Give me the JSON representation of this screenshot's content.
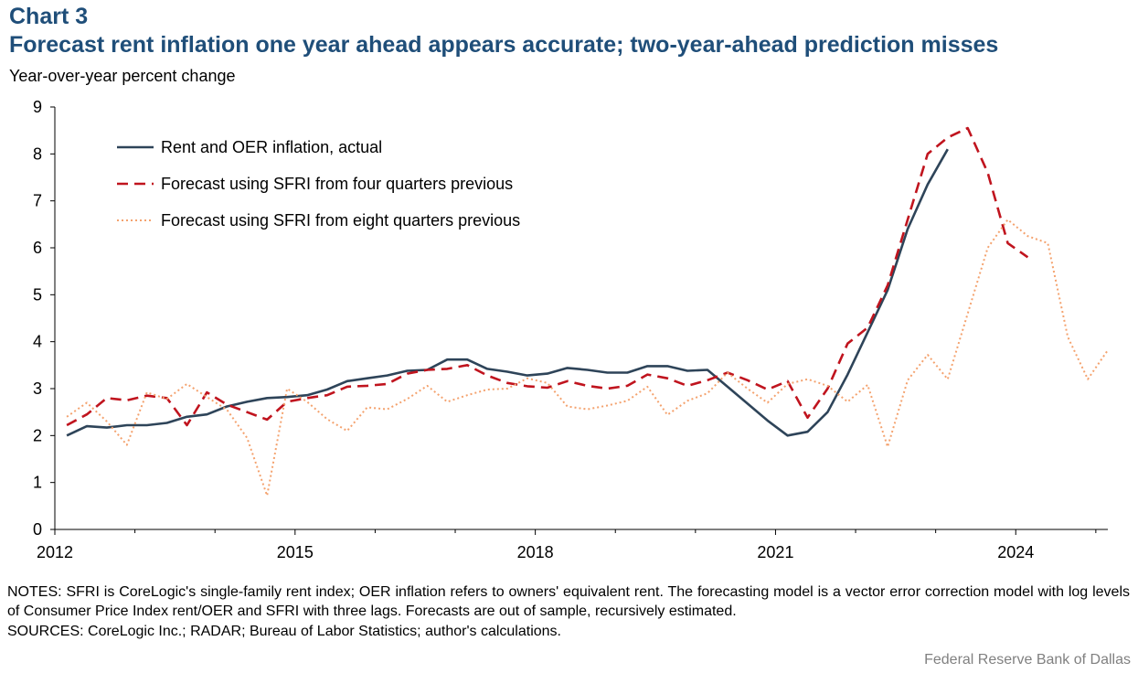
{
  "header": {
    "chart_number": "Chart 3",
    "title": "Forecast rent inflation one year ahead appears accurate; two-year-ahead prediction misses",
    "ylabel": "Year-over-year percent change"
  },
  "footer": {
    "notes": "NOTES: SFRI is CoreLogic's single-family rent index; OER inflation refers to owners' equivalent rent. The forecasting model is a vector error correction model with log levels of Consumer Price Index rent/OER and SFRI with three lags. Forecasts are out of sample, recursively estimated.",
    "sources": "SOURCES: CoreLogic Inc.; RADAR;  Bureau of Labor Statistics; author's calculations.",
    "credit": "Federal Reserve  Bank of Dallas"
  },
  "colors": {
    "actual": "#2e4459",
    "forecast4q": "#c0141e",
    "forecast8q": "#f4a26e",
    "title": "#1f4e79"
  },
  "chart_data": {
    "type": "line",
    "title": "Forecast rent inflation one year ahead appears accurate; two-year-ahead prediction misses",
    "ylabel": "Year-over-year percent change",
    "xlabel": "",
    "ylim": [
      0,
      9
    ],
    "xlim": [
      2012,
      2025.15
    ],
    "x_tick_labels": [
      "2012",
      "2015",
      "2018",
      "2021",
      "2024"
    ],
    "y_tick_labels": [
      "0",
      "1",
      "2",
      "3",
      "4",
      "5",
      "6",
      "7",
      "8",
      "9"
    ],
    "legend_position": "top-left",
    "grid": false,
    "series": [
      {
        "name": "Rent and OER inflation, actual",
        "style": "solid",
        "x": [
          2012.15,
          2012.4,
          2012.65,
          2012.9,
          2013.15,
          2013.4,
          2013.65,
          2013.9,
          2014.15,
          2014.4,
          2014.65,
          2014.9,
          2015.15,
          2015.4,
          2015.65,
          2015.9,
          2016.15,
          2016.4,
          2016.65,
          2016.9,
          2017.15,
          2017.4,
          2017.65,
          2017.9,
          2018.15,
          2018.4,
          2018.65,
          2018.9,
          2019.15,
          2019.4,
          2019.65,
          2019.9,
          2020.15,
          2020.4,
          2020.65,
          2020.9,
          2021.15,
          2021.4,
          2021.65,
          2021.9,
          2022.15,
          2022.4,
          2022.65,
          2022.9,
          2023.15
        ],
        "y": [
          2.0,
          2.2,
          2.17,
          2.22,
          2.22,
          2.27,
          2.4,
          2.45,
          2.62,
          2.72,
          2.8,
          2.82,
          2.86,
          2.98,
          3.16,
          3.22,
          3.28,
          3.38,
          3.4,
          3.62,
          3.62,
          3.42,
          3.36,
          3.28,
          3.32,
          3.44,
          3.4,
          3.34,
          3.34,
          3.48,
          3.48,
          3.38,
          3.4,
          3.04,
          2.68,
          2.32,
          2.0,
          2.08,
          2.5,
          3.3,
          4.2,
          5.1,
          6.4,
          7.35,
          8.1
        ]
      },
      {
        "name": "Forecast using SFRI from four quarters previous",
        "style": "dashed",
        "x": [
          2012.15,
          2012.4,
          2012.65,
          2012.9,
          2013.15,
          2013.4,
          2013.65,
          2013.9,
          2014.15,
          2014.4,
          2014.65,
          2014.9,
          2015.15,
          2015.4,
          2015.65,
          2015.9,
          2016.15,
          2016.4,
          2016.65,
          2016.9,
          2017.15,
          2017.4,
          2017.65,
          2017.9,
          2018.15,
          2018.4,
          2018.65,
          2018.9,
          2019.15,
          2019.4,
          2019.65,
          2019.9,
          2020.15,
          2020.4,
          2020.65,
          2020.9,
          2021.15,
          2021.4,
          2021.65,
          2021.9,
          2022.15,
          2022.4,
          2022.65,
          2022.9,
          2023.15,
          2023.4,
          2023.65,
          2023.9,
          2024.15
        ],
        "y": [
          2.22,
          2.45,
          2.8,
          2.75,
          2.85,
          2.8,
          2.22,
          2.92,
          2.66,
          2.5,
          2.34,
          2.72,
          2.8,
          2.86,
          3.04,
          3.06,
          3.1,
          3.32,
          3.4,
          3.42,
          3.5,
          3.28,
          3.12,
          3.05,
          3.02,
          3.16,
          3.06,
          3.0,
          3.06,
          3.3,
          3.22,
          3.06,
          3.18,
          3.34,
          3.18,
          2.98,
          3.16,
          2.38,
          3.0,
          3.96,
          4.3,
          5.2,
          6.6,
          8.0,
          8.35,
          8.55,
          7.6,
          6.1,
          5.8
        ]
      },
      {
        "name": "Forecast using SFRI from eight quarters previous",
        "style": "dotted",
        "x": [
          2012.15,
          2012.4,
          2012.65,
          2012.9,
          2013.15,
          2013.4,
          2013.65,
          2013.9,
          2014.15,
          2014.4,
          2014.65,
          2014.9,
          2015.15,
          2015.4,
          2015.65,
          2015.9,
          2016.15,
          2016.4,
          2016.65,
          2016.9,
          2017.15,
          2017.4,
          2017.65,
          2017.9,
          2018.15,
          2018.4,
          2018.65,
          2018.9,
          2019.15,
          2019.4,
          2019.65,
          2019.9,
          2020.15,
          2020.4,
          2020.65,
          2020.9,
          2021.15,
          2021.4,
          2021.65,
          2021.9,
          2022.15,
          2022.4,
          2022.65,
          2022.9,
          2023.15,
          2023.4,
          2023.65,
          2023.9,
          2024.15,
          2024.4,
          2024.65,
          2024.9,
          2025.15
        ],
        "y": [
          2.4,
          2.7,
          2.3,
          1.8,
          2.92,
          2.78,
          3.1,
          2.82,
          2.55,
          1.95,
          0.72,
          3.0,
          2.72,
          2.35,
          2.1,
          2.6,
          2.56,
          2.78,
          3.06,
          2.72,
          2.86,
          2.98,
          3.0,
          3.22,
          3.12,
          2.62,
          2.56,
          2.64,
          2.74,
          3.04,
          2.44,
          2.74,
          2.9,
          3.34,
          3.0,
          2.7,
          3.1,
          3.2,
          3.06,
          2.72,
          3.08,
          1.76,
          3.18,
          3.72,
          3.2,
          4.6,
          6.0,
          6.6,
          6.25,
          6.1,
          4.1,
          3.2,
          3.82
        ]
      }
    ]
  }
}
